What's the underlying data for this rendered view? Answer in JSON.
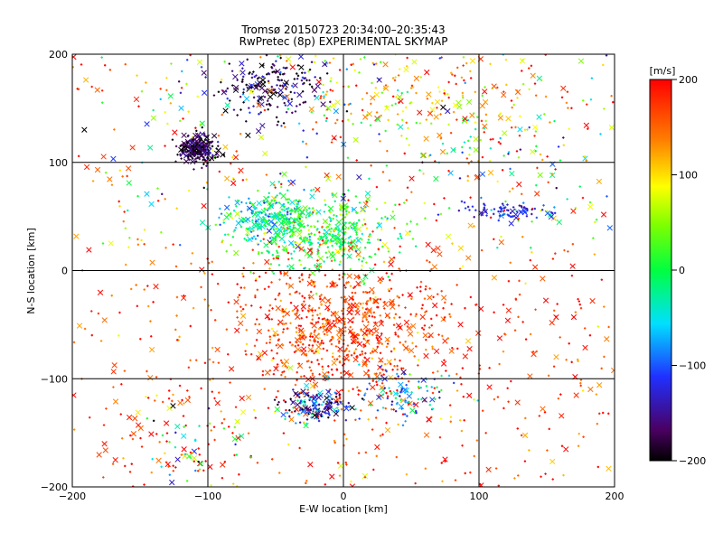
{
  "chart_data": {
    "type": "scatter",
    "title": "Tromsø 20150723 20:34:00–20:35:43",
    "subtitle": "RwPretec (8p) EXPERIMENTAL SKYMAP",
    "xlabel": "E-W location [km]",
    "ylabel": "N-S location [km]",
    "xlim": [
      -200,
      200
    ],
    "ylim": [
      -200,
      200
    ],
    "xticks": [
      -200,
      -100,
      0,
      100,
      200
    ],
    "yticks": [
      -200,
      -100,
      0,
      100,
      200
    ],
    "grid": true,
    "colorbar": {
      "label": "[m/s]",
      "range": [
        -200,
        200
      ],
      "ticks": [
        -200,
        -100,
        0,
        100,
        200
      ],
      "colormap": "rainbow (black-purple-blue-cyan-green-yellow-orange-red)"
    },
    "markers": [
      "small dot (+)",
      "cross (x)"
    ],
    "clusters": [
      {
        "x": -108,
        "y": 112,
        "spread_x": 7,
        "spread_y": 6,
        "velocity": -180,
        "vel_spread": 25
      },
      {
        "x": -55,
        "y": 170,
        "spread_x": 22,
        "spread_y": 14,
        "velocity": -170,
        "vel_spread": 40
      },
      {
        "x": -52,
        "y": 50,
        "spread_x": 18,
        "spread_y": 12,
        "velocity": -40,
        "vel_spread": 40
      },
      {
        "x": -15,
        "y": 35,
        "spread_x": 30,
        "spread_y": 18,
        "velocity": 10,
        "vel_spread": 40
      },
      {
        "x": 0,
        "y": -55,
        "spread_x": 40,
        "spread_y": 35,
        "velocity": 170,
        "vel_spread": 30
      },
      {
        "x": -20,
        "y": -125,
        "spread_x": 12,
        "spread_y": 8,
        "velocity": -130,
        "vel_spread": 60
      },
      {
        "x": 45,
        "y": -115,
        "spread_x": 18,
        "spread_y": 12,
        "velocity": -70,
        "vel_spread": 50
      },
      {
        "x": 120,
        "y": 55,
        "spread_x": 18,
        "spread_y": 4,
        "velocity": -120,
        "vel_spread": 20
      },
      {
        "x": 60,
        "y": 165,
        "spread_x": 50,
        "spread_y": 25,
        "velocity": 110,
        "vel_spread": 50
      },
      {
        "x": -110,
        "y": -165,
        "spread_x": 20,
        "spread_y": 20,
        "velocity": 50,
        "vel_spread": 140
      },
      {
        "x": 90,
        "y": 120,
        "spread_x": 40,
        "spread_y": 30,
        "velocity": 50,
        "vel_spread": 120
      }
    ]
  }
}
